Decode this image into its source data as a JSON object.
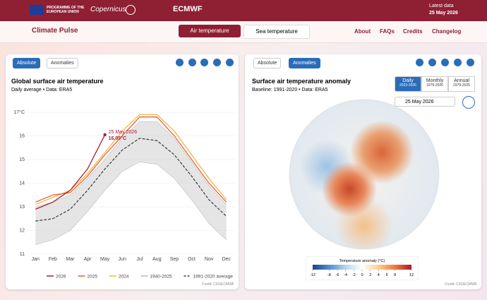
{
  "header": {
    "eu": "PROGRAMME OF THE EUROPEAN UNION",
    "copernicus": "Copernicus",
    "ecmwf": "ECMWF",
    "latest_label": "Latest data",
    "latest_date": "25 May 2026"
  },
  "nav": {
    "logo": "Climate Pulse",
    "tabs": [
      "Air temperature",
      "Sea temperature"
    ],
    "links": [
      "About",
      "FAQs",
      "Credits",
      "Changelog"
    ]
  },
  "left_panel": {
    "toggle": [
      "Absolute",
      "Anomalies"
    ],
    "credit": "Credit: C3S/ECMWF"
  },
  "chart_data": {
    "type": "line",
    "title": "Global surface air temperature",
    "subtitle": "Daily average • Data: ERA5",
    "categories": [
      "Jan",
      "Feb",
      "Mar",
      "Apr",
      "May",
      "Jun",
      "Jul",
      "Aug",
      "Sep",
      "Oct",
      "Nov",
      "Dec"
    ],
    "ylim": [
      11,
      17.3
    ],
    "yticks": [
      {
        "value": 17,
        "label": "17°C"
      },
      16,
      15,
      14,
      13,
      12,
      11
    ],
    "band": {
      "name": "1940-2025",
      "color": "#d4d4d4",
      "values": [
        13.0,
        13.2,
        13.5,
        14.2,
        15.0,
        15.9,
        16.6,
        16.6,
        15.9,
        14.9,
        13.9,
        13.1
      ],
      "lower": [
        11.4,
        11.6,
        12.0,
        12.8,
        13.7,
        14.5,
        14.9,
        14.8,
        14.2,
        13.3,
        12.3,
        11.6
      ]
    },
    "series": [
      {
        "name": "2026",
        "color": "#a3223a",
        "values": [
          12.9,
          13.2,
          13.7,
          14.6,
          16.05,
          null,
          null,
          null,
          null,
          null,
          null,
          null
        ]
      },
      {
        "name": "2025",
        "color": "#e8632d",
        "values": [
          13.2,
          13.5,
          13.6,
          14.3,
          15.2,
          16.0,
          16.8,
          16.8,
          16.0,
          15.0,
          14.0,
          13.2
        ]
      },
      {
        "name": "2024",
        "color": "#f2b34c",
        "values": [
          13.1,
          13.4,
          13.7,
          14.4,
          15.3,
          16.2,
          16.9,
          16.9,
          16.2,
          15.2,
          14.2,
          13.3
        ]
      },
      {
        "name": "1991-2020 average",
        "color": "#444444",
        "dashed": true,
        "values": [
          12.4,
          12.5,
          12.9,
          13.7,
          14.6,
          15.4,
          15.9,
          15.8,
          15.2,
          14.3,
          13.3,
          12.6
        ]
      }
    ],
    "annotation": {
      "date": "25 May 2026",
      "label": "16.05°C"
    }
  },
  "right_panel": {
    "toggle": [
      "Absolute",
      "Anomalies"
    ],
    "title": "Surface air temperature anomaly",
    "subtitle": "Baseline: 1991-2020 • Data: ERA5",
    "periods": [
      {
        "label": "Daily",
        "range": "2023-2026"
      },
      {
        "label": "Monthly",
        "range": "1979-2026"
      },
      {
        "label": "Annual",
        "range": "1979-2025"
      }
    ],
    "date": "25 May 2026",
    "colorbar": {
      "title": "Temperature anomaly (°C)",
      "lim": [
        -12,
        12
      ],
      "ticks": [
        -12,
        -8,
        -6,
        -4,
        -2,
        0,
        2,
        4,
        6,
        8,
        12
      ]
    },
    "credit": "Credit: C3S/ECMWF"
  }
}
